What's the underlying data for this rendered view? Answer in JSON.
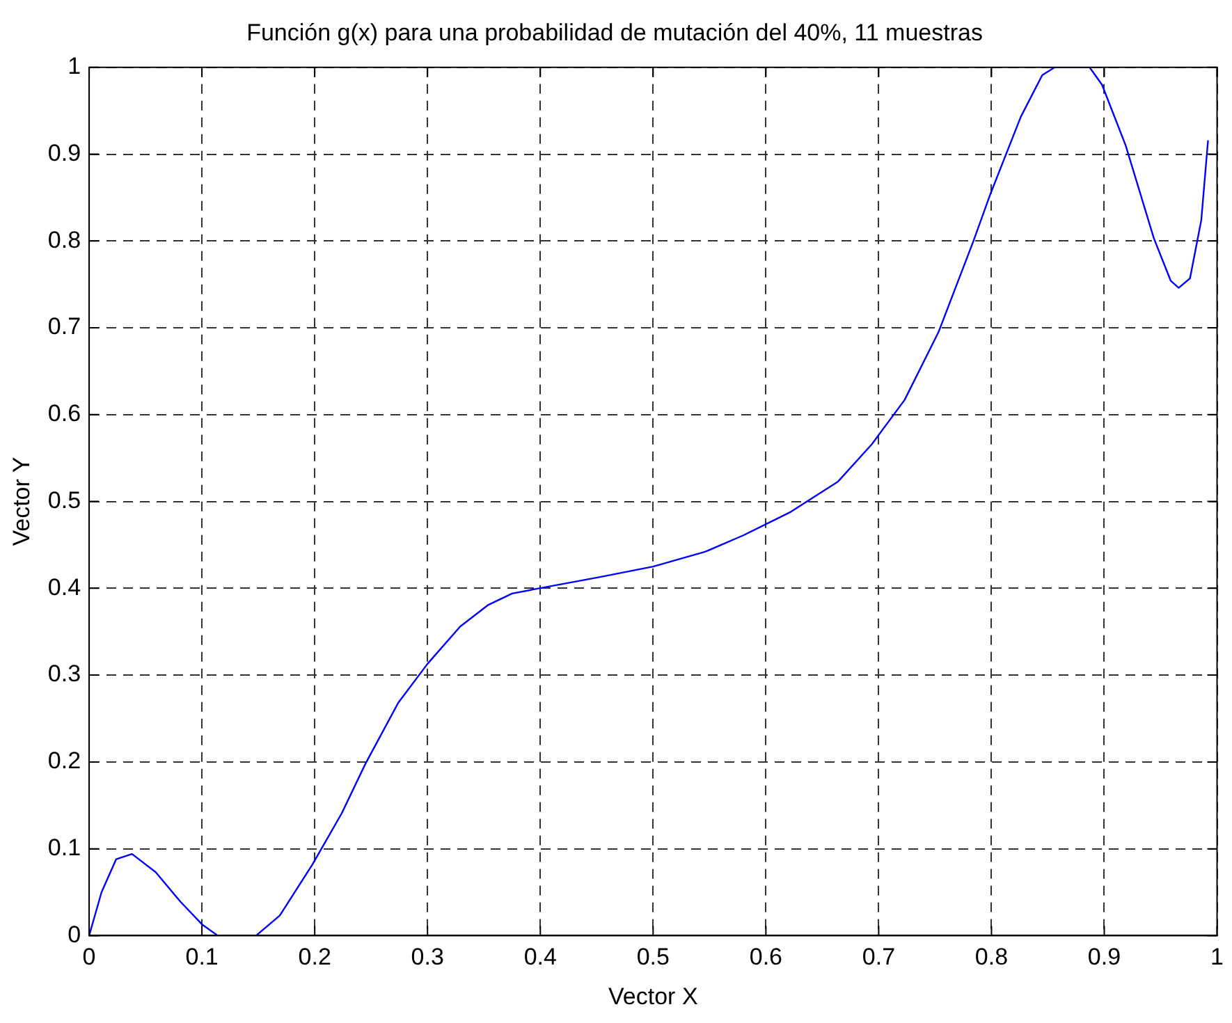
{
  "chart_data": {
    "type": "line",
    "title": "Función g(x) para una probabilidad de mutación del 40%, 11 muestras",
    "xlabel": "Vector X",
    "ylabel": "Vector Y",
    "x": [
      0,
      0.011,
      0.024,
      0.038,
      0.059,
      0.081,
      0.1,
      0.114,
      0.148,
      0.169,
      0.198,
      0.224,
      0.245,
      0.274,
      0.3,
      0.329,
      0.354,
      0.375,
      0.399,
      0.453,
      0.5,
      0.546,
      0.58,
      0.622,
      0.664,
      0.694,
      0.723,
      0.753,
      0.784,
      0.799,
      0.826,
      0.845,
      0.856,
      0.887,
      0.898,
      0.919,
      0.944,
      0.959,
      0.966,
      0.976,
      0.986,
      0.992
    ],
    "series": [
      {
        "color": "#0000ff",
        "values": [
          0,
          0.05,
          0.088,
          0.094,
          0.073,
          0.039,
          0.013,
          0,
          0,
          0.023,
          0.082,
          0.141,
          0.198,
          0.268,
          0.313,
          0.356,
          0.381,
          0.394,
          0.4,
          0.413,
          0.425,
          0.442,
          0.461,
          0.488,
          0.523,
          0.566,
          0.617,
          0.695,
          0.8,
          0.854,
          0.943,
          0.991,
          1,
          1,
          0.98,
          0.91,
          0.803,
          0.754,
          0.746,
          0.757,
          0.824,
          0.916
        ]
      }
    ],
    "xlim": [
      0,
      1
    ],
    "xticks": [
      0,
      0.1,
      0.2,
      0.3,
      0.4,
      0.5,
      0.6,
      0.7,
      0.8,
      0.9,
      1
    ],
    "ylim": [
      0,
      1
    ],
    "yticks": [
      0,
      0.1,
      0.2,
      0.3,
      0.4,
      0.5,
      0.6,
      0.7,
      0.8,
      0.9,
      1
    ],
    "grid": true,
    "legend": false,
    "marker": "none",
    "line_style": "solid"
  }
}
